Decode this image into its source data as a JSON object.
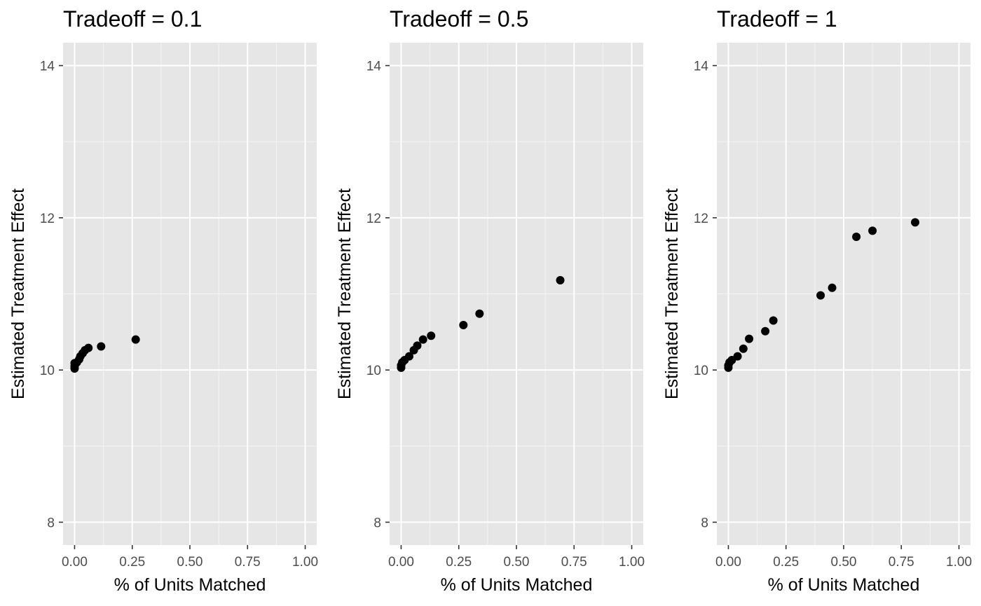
{
  "chart_data": [
    {
      "type": "scatter",
      "title": "Tradeoff = 0.1",
      "xlabel": "% of Units Matched",
      "ylabel": "Estimated Treatment Effect",
      "xlim": [
        -0.05,
        1.05
      ],
      "ylim": [
        7.7,
        14.3
      ],
      "x_ticks": [
        0.0,
        0.25,
        0.5,
        0.75,
        1.0
      ],
      "x_tick_labels": [
        "0.00",
        "0.25",
        "0.50",
        "0.75",
        "1.00"
      ],
      "y_ticks": [
        8,
        10,
        12,
        14
      ],
      "y_tick_labels": [
        "8",
        "10",
        "12",
        "14"
      ],
      "grid": true,
      "points": [
        {
          "x": 0.0,
          "y": 10.02
        },
        {
          "x": 0.0,
          "y": 10.05
        },
        {
          "x": 0.0,
          "y": 10.09
        },
        {
          "x": 0.01,
          "y": 10.1
        },
        {
          "x": 0.02,
          "y": 10.14
        },
        {
          "x": 0.025,
          "y": 10.18
        },
        {
          "x": 0.035,
          "y": 10.22
        },
        {
          "x": 0.045,
          "y": 10.26
        },
        {
          "x": 0.06,
          "y": 10.29
        },
        {
          "x": 0.115,
          "y": 10.31
        },
        {
          "x": 0.265,
          "y": 10.4
        }
      ]
    },
    {
      "type": "scatter",
      "title": "Tradeoff = 0.5",
      "xlabel": "% of Units Matched",
      "ylabel": "Estimated Treatment Effect",
      "xlim": [
        -0.05,
        1.05
      ],
      "ylim": [
        7.7,
        14.3
      ],
      "x_ticks": [
        0.0,
        0.25,
        0.5,
        0.75,
        1.0
      ],
      "x_tick_labels": [
        "0.00",
        "0.25",
        "0.50",
        "0.75",
        "1.00"
      ],
      "y_ticks": [
        8,
        10,
        12,
        14
      ],
      "y_tick_labels": [
        "8",
        "10",
        "12",
        "14"
      ],
      "grid": true,
      "points": [
        {
          "x": 0.0,
          "y": 10.03
        },
        {
          "x": 0.0,
          "y": 10.06
        },
        {
          "x": 0.005,
          "y": 10.1
        },
        {
          "x": 0.015,
          "y": 10.13
        },
        {
          "x": 0.035,
          "y": 10.18
        },
        {
          "x": 0.055,
          "y": 10.26
        },
        {
          "x": 0.07,
          "y": 10.32
        },
        {
          "x": 0.095,
          "y": 10.4
        },
        {
          "x": 0.13,
          "y": 10.45
        },
        {
          "x": 0.27,
          "y": 10.59
        },
        {
          "x": 0.34,
          "y": 10.74
        },
        {
          "x": 0.69,
          "y": 11.18
        }
      ]
    },
    {
      "type": "scatter",
      "title": "Tradeoff = 1",
      "xlabel": "% of Units Matched",
      "ylabel": "Estimated Treatment Effect",
      "xlim": [
        -0.05,
        1.05
      ],
      "ylim": [
        7.7,
        14.3
      ],
      "x_ticks": [
        0.0,
        0.25,
        0.5,
        0.75,
        1.0
      ],
      "x_tick_labels": [
        "0.00",
        "0.25",
        "0.50",
        "0.75",
        "1.00"
      ],
      "y_ticks": [
        8,
        10,
        12,
        14
      ],
      "y_tick_labels": [
        "8",
        "10",
        "12",
        "14"
      ],
      "grid": true,
      "points": [
        {
          "x": 0.0,
          "y": 10.03
        },
        {
          "x": 0.0,
          "y": 10.06
        },
        {
          "x": 0.005,
          "y": 10.1
        },
        {
          "x": 0.015,
          "y": 10.13
        },
        {
          "x": 0.04,
          "y": 10.18
        },
        {
          "x": 0.065,
          "y": 10.28
        },
        {
          "x": 0.09,
          "y": 10.41
        },
        {
          "x": 0.16,
          "y": 10.51
        },
        {
          "x": 0.195,
          "y": 10.65
        },
        {
          "x": 0.4,
          "y": 10.98
        },
        {
          "x": 0.45,
          "y": 11.08
        },
        {
          "x": 0.555,
          "y": 11.75
        },
        {
          "x": 0.625,
          "y": 11.83
        },
        {
          "x": 0.81,
          "y": 11.94
        }
      ]
    }
  ]
}
